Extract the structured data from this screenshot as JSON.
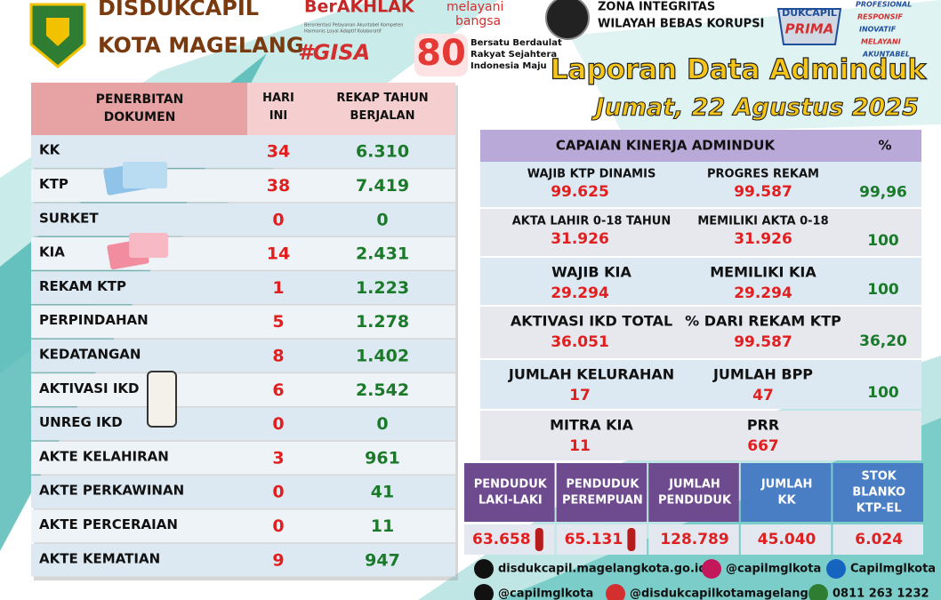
{
  "header": {
    "org_line1": "DISDUKCAPIL",
    "org_line2": "KOTA MAGELANG",
    "berakhlak": "BerAKHLAK",
    "berakhlak_sub1": "Berorientasi Pelayanan Akuntabel Kompeten",
    "berakhlak_sub2": "Harmonis Loyal Adaptif Kolaboratif",
    "melayani1": "melayani",
    "melayani2": "bangsa",
    "gisa": "#GISA",
    "eighty": "80",
    "eighty_sub": [
      "Bersatu Berdaulat",
      "Rakyat Sejahtera",
      "Indonesia Maju"
    ],
    "zona1": "ZONA INTEGRITAS",
    "zona2": "WILAYAH BEBAS KORUPSI",
    "dukcapil": "DUKCAPIL",
    "prima": "PRIMA",
    "tagline": [
      "PROFESIONAL",
      "RESPONSIF",
      "INOVATIF",
      "MELAYANI",
      "AKUNTABEL"
    ],
    "title": "Laporan Data Adminduk",
    "date": "Jumat, 22 Agustus 2025"
  },
  "documents": {
    "header": [
      "PENERBITAN DOKUMEN",
      "HARI INI",
      "REKAP TAHUN BERJALAN"
    ],
    "rows": [
      [
        "KK",
        "34",
        "6.310"
      ],
      [
        "KTP",
        "38",
        "7.419"
      ],
      [
        "SURKET",
        "0",
        "0"
      ],
      [
        "KIA",
        "14",
        "2.431"
      ],
      [
        "REKAM KTP",
        "1",
        "1.223"
      ],
      [
        "PERPINDAHAN",
        "5",
        "1.278"
      ],
      [
        "KEDATANGAN",
        "8",
        "1.402"
      ],
      [
        "AKTIVASI IKD",
        "6",
        "2.542"
      ],
      [
        "UNREG IKD",
        "0",
        "0"
      ],
      [
        "AKTE KELAHIRAN",
        "3",
        "961"
      ],
      [
        "AKTE PERKAWINAN",
        "0",
        "41"
      ],
      [
        "AKTE PERCERAIAN",
        "0",
        "11"
      ],
      [
        "AKTE KEMATIAN",
        "9",
        "947"
      ]
    ]
  },
  "performance": {
    "header": [
      "CAPAIAN KINERJA ADMINDUK",
      "%"
    ],
    "rows": [
      {
        "a_label": "WAJIB KTP DINAMIS",
        "a_value": "99.625",
        "b_label": "PROGRES REKAM",
        "b_value": "99.587",
        "pct": "99,96"
      },
      {
        "a_label": "AKTA LAHIR 0-18 TAHUN",
        "a_value": "31.926",
        "b_label": "MEMILIKI AKTA 0-18",
        "b_value": "31.926",
        "pct": "100"
      },
      {
        "a_label": "WAJIB KIA",
        "a_value": "29.294",
        "b_label": "MEMILIKI KIA",
        "b_value": "29.294",
        "pct": "100"
      },
      {
        "a_label": "AKTIVASI IKD TOTAL",
        "a_value": "36.051",
        "b_label": "% DARI REKAM KTP",
        "b_value": "99.587",
        "pct": "36,20"
      },
      {
        "a_label": "JUMLAH KELURAHAN",
        "a_value": "17",
        "b_label": "JUMLAH BPP",
        "b_value": "47",
        "pct": "100"
      },
      {
        "a_label": "MITRA KIA",
        "a_value": "11",
        "b_label": "PRR",
        "b_value": "667"
      }
    ]
  },
  "population": {
    "header": [
      [
        "PENDUDUK",
        "LAKI-LAKI"
      ],
      [
        "PENDUDUK",
        "PEREMPUAN"
      ],
      [
        "JUMLAH",
        "PENDUDUK"
      ],
      [
        "JUMLAH",
        "KK"
      ],
      [
        "STOK",
        "BLANKO",
        "KTP-EL"
      ]
    ],
    "values": [
      "63.658",
      "65.131",
      "128.789",
      "45.040",
      "6.024"
    ]
  },
  "contacts": {
    "website": "disdukcapil.magelangkota.go.id",
    "instagram": "@capilmglkota",
    "facebook": "Capilmglkota",
    "x": "@capilmglkota",
    "youtube": "@disdukcapilkotamagelang",
    "whatsapp": "0811 263 1232"
  }
}
